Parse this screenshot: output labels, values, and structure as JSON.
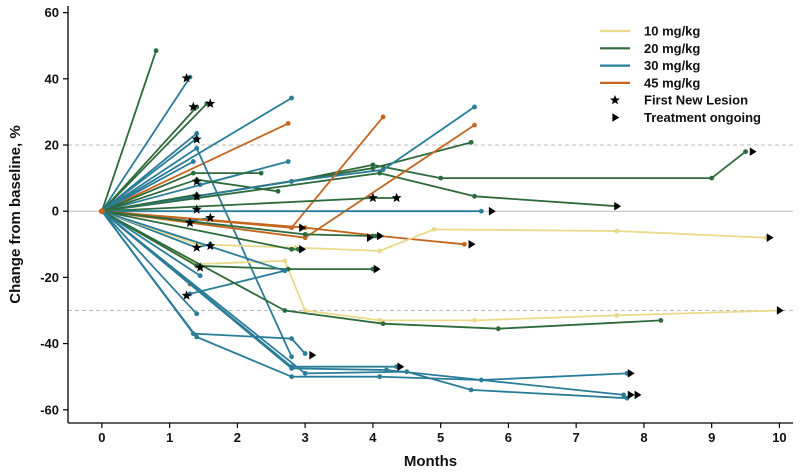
{
  "chart_data": {
    "type": "line",
    "title": "",
    "xlabel": "Months",
    "ylabel": "Change from baseline, %",
    "xlim": [
      -0.5,
      10.2
    ],
    "ylim": [
      -64,
      62
    ],
    "xticks": [
      0,
      1,
      2,
      3,
      4,
      5,
      6,
      7,
      8,
      9,
      10
    ],
    "yticks": [
      -60,
      -40,
      -20,
      0,
      20,
      40,
      60
    ],
    "reference_lines": [
      {
        "y": 20,
        "style": "dashed",
        "color": "#bbbbbb"
      },
      {
        "y": 0,
        "style": "solid",
        "color": "#bbbbbb"
      },
      {
        "y": -30,
        "style": "dashed",
        "color": "#bbbbbb"
      }
    ],
    "legend": {
      "position": "top-right",
      "entries": [
        {
          "label": "10 mg/kg",
          "kind": "line",
          "color": "#EBDA8C"
        },
        {
          "label": "20 mg/kg",
          "kind": "line",
          "color": "#2E6B3C"
        },
        {
          "label": "30 mg/kg",
          "kind": "line",
          "color": "#2A7D98"
        },
        {
          "label": "45 mg/kg",
          "kind": "line",
          "color": "#C4661F"
        },
        {
          "label": "First New Lesion",
          "kind": "star",
          "color": "#000000"
        },
        {
          "label": "Treatment ongoing",
          "kind": "triangle",
          "color": "#000000"
        }
      ]
    },
    "colors": {
      "10 mg/kg": "#EBDA8C",
      "20 mg/kg": "#2E6B3C",
      "30 mg/kg": "#2A7D98",
      "45 mg/kg": "#C4661F"
    },
    "series": [
      {
        "dose": "20 mg/kg",
        "points": [
          [
            0,
            0
          ],
          [
            0.8,
            48.5
          ]
        ]
      },
      {
        "dose": "30 mg/kg",
        "points": [
          [
            0,
            0
          ],
          [
            1.3,
            40.5
          ]
        ]
      },
      {
        "dose": "20 mg/kg",
        "points": [
          [
            0,
            0
          ],
          [
            1.4,
            31.5
          ]
        ]
      },
      {
        "dose": "20 mg/kg",
        "points": [
          [
            0,
            0
          ],
          [
            1.55,
            32.5
          ]
        ]
      },
      {
        "dose": "30 mg/kg",
        "points": [
          [
            0,
            0
          ],
          [
            2.8,
            34.2
          ]
        ]
      },
      {
        "dose": "45 mg/kg",
        "points": [
          [
            0,
            0
          ],
          [
            2.75,
            26.5
          ]
        ]
      },
      {
        "dose": "30 mg/kg",
        "points": [
          [
            0,
            0
          ],
          [
            1.4,
            23.5
          ]
        ]
      },
      {
        "dose": "30 mg/kg",
        "points": [
          [
            0,
            0
          ],
          [
            1.4,
            22
          ]
        ]
      },
      {
        "dose": "30 mg/kg",
        "points": [
          [
            0,
            0
          ],
          [
            1.4,
            19
          ],
          [
            2.8,
            -44
          ]
        ]
      },
      {
        "dose": "30 mg/kg",
        "points": [
          [
            0,
            0
          ],
          [
            1.35,
            15
          ]
        ]
      },
      {
        "dose": "30 mg/kg",
        "points": [
          [
            0,
            0
          ],
          [
            2.75,
            15
          ],
          [
            1.45,
            8
          ]
        ]
      },
      {
        "dose": "20 mg/kg",
        "points": [
          [
            0,
            0
          ],
          [
            1.35,
            11.5
          ],
          [
            2.35,
            11.5
          ]
        ]
      },
      {
        "dose": "20 mg/kg",
        "points": [
          [
            0,
            0
          ],
          [
            1.4,
            9.5
          ],
          [
            2.6,
            6
          ]
        ]
      },
      {
        "dose": "20 mg/kg",
        "points": [
          [
            0,
            0
          ],
          [
            2.8,
            9
          ],
          [
            4.0,
            14
          ],
          [
            5.0,
            10
          ],
          [
            9.0,
            10
          ],
          [
            9.5,
            18
          ]
        ]
      },
      {
        "dose": "20 mg/kg",
        "points": [
          [
            0,
            0
          ],
          [
            4.1,
            11.5
          ],
          [
            5.5,
            4.5
          ],
          [
            7.6,
            1.5
          ]
        ]
      },
      {
        "dose": "20 mg/kg",
        "points": [
          [
            0,
            0
          ],
          [
            4.0,
            13
          ],
          [
            5.45,
            20.8
          ]
        ]
      },
      {
        "dose": "30 mg/kg",
        "points": [
          [
            0,
            0
          ],
          [
            2.8,
            9
          ],
          [
            4.15,
            12.5
          ],
          [
            5.5,
            31.5
          ]
        ]
      },
      {
        "dose": "45 mg/kg",
        "points": [
          [
            0,
            0
          ],
          [
            2.8,
            -5
          ],
          [
            4.15,
            28.5
          ]
        ]
      },
      {
        "dose": "45 mg/kg",
        "points": [
          [
            0,
            0
          ],
          [
            3.0,
            -8
          ],
          [
            5.5,
            26
          ]
        ]
      },
      {
        "dose": "20 mg/kg",
        "points": [
          [
            0,
            0
          ],
          [
            1.4,
            5
          ],
          [
            1.4,
            4
          ]
        ]
      },
      {
        "dose": "20 mg/kg",
        "points": [
          [
            0,
            0
          ],
          [
            4.0,
            4
          ],
          [
            4.35,
            4
          ]
        ]
      },
      {
        "dose": "30 mg/kg",
        "points": [
          [
            0,
            0
          ],
          [
            5.6,
            0
          ]
        ]
      },
      {
        "dose": "30 mg/kg",
        "points": [
          [
            0,
            0
          ],
          [
            1.3,
            -3
          ],
          [
            1.6,
            -2
          ]
        ]
      },
      {
        "dose": "45 mg/kg",
        "points": [
          [
            0,
            0
          ],
          [
            3.0,
            -5
          ],
          [
            4.1,
            -7.5
          ],
          [
            5.35,
            -10
          ]
        ]
      },
      {
        "dose": "20 mg/kg",
        "points": [
          [
            0,
            0
          ],
          [
            3.0,
            -7
          ],
          [
            4.0,
            -7.5
          ],
          [
            4.05,
            -7.5
          ]
        ]
      },
      {
        "dose": "30 mg/kg",
        "points": [
          [
            0,
            0
          ],
          [
            1.4,
            -11
          ],
          [
            1.6,
            -10
          ]
        ]
      },
      {
        "dose": "10 mg/kg",
        "points": [
          [
            0,
            0
          ],
          [
            1.4,
            -10
          ],
          [
            2.85,
            -11
          ],
          [
            4.1,
            -12
          ],
          [
            4.9,
            -5.5
          ],
          [
            7.6,
            -6
          ],
          [
            9.8,
            -8
          ]
        ]
      },
      {
        "dose": "20 mg/kg",
        "points": [
          [
            0,
            0
          ],
          [
            2.8,
            -11.5
          ],
          [
            2.9,
            -11.5
          ]
        ]
      },
      {
        "dose": "10 mg/kg",
        "points": [
          [
            0,
            0
          ],
          [
            1.4,
            -16
          ],
          [
            2.7,
            -15
          ],
          [
            3.0,
            -30
          ],
          [
            4.1,
            -33
          ],
          [
            5.5,
            -33
          ],
          [
            7.6,
            -31.5
          ],
          [
            10.0,
            -30
          ]
        ]
      },
      {
        "dose": "20 mg/kg",
        "points": [
          [
            0,
            0
          ],
          [
            1.4,
            -16.5
          ],
          [
            2.75,
            -17.5
          ],
          [
            4.0,
            -17.5
          ],
          [
            4.05,
            -17.5
          ]
        ]
      },
      {
        "dose": "30 mg/kg",
        "points": [
          [
            0,
            0
          ],
          [
            1.45,
            -19.5
          ]
        ]
      },
      {
        "dose": "30 mg/kg",
        "points": [
          [
            0,
            0
          ],
          [
            2.7,
            -18
          ],
          [
            1.3,
            -25
          ]
        ]
      },
      {
        "dose": "45 mg/kg",
        "points": [
          [
            0,
            0
          ],
          [
            1.3,
            -22
          ]
        ]
      },
      {
        "dose": "30 mg/kg",
        "points": [
          [
            0,
            0
          ],
          [
            1.4,
            -31
          ]
        ]
      },
      {
        "dose": "20 mg/kg",
        "points": [
          [
            0,
            0
          ],
          [
            2.7,
            -30
          ],
          [
            4.15,
            -34
          ],
          [
            5.85,
            -35.5
          ],
          [
            8.25,
            -33
          ]
        ]
      },
      {
        "dose": "30 mg/kg",
        "points": [
          [
            0,
            0
          ],
          [
            1.35,
            -37
          ],
          [
            2.8,
            -38.5
          ],
          [
            3.0,
            -43
          ]
        ]
      },
      {
        "dose": "30 mg/kg",
        "points": [
          [
            0,
            0
          ],
          [
            1.4,
            -38
          ],
          [
            2.8,
            -50
          ],
          [
            4.1,
            -50
          ],
          [
            5.6,
            -51
          ],
          [
            7.75,
            -49
          ]
        ]
      },
      {
        "dose": "30 mg/kg",
        "points": [
          [
            0,
            0
          ],
          [
            2.8,
            -47
          ],
          [
            4.35,
            -47
          ]
        ]
      },
      {
        "dose": "30 mg/kg",
        "points": [
          [
            0,
            0
          ],
          [
            3.0,
            -49
          ],
          [
            4.5,
            -48.5
          ],
          [
            5.45,
            -54
          ],
          [
            7.75,
            -56.5
          ]
        ]
      },
      {
        "dose": "30 mg/kg",
        "points": [
          [
            0,
            0
          ],
          [
            2.8,
            -47.5
          ],
          [
            4.2,
            -48
          ],
          [
            7.7,
            -55.5
          ]
        ]
      }
    ],
    "first_new_lesion": [
      [
        1.25,
        40.2
      ],
      [
        1.35,
        31.5
      ],
      [
        1.6,
        32.5
      ],
      [
        1.4,
        21.7
      ],
      [
        1.4,
        9
      ],
      [
        1.4,
        4.5
      ],
      [
        1.4,
        0.5
      ],
      [
        1.3,
        -3.5
      ],
      [
        1.6,
        -2
      ],
      [
        1.4,
        -11
      ],
      [
        1.6,
        -10.5
      ],
      [
        1.45,
        -17
      ],
      [
        1.25,
        -25.5
      ],
      [
        4.0,
        4
      ],
      [
        4.35,
        4
      ]
    ],
    "treatment_ongoing": [
      [
        9.6,
        18
      ],
      [
        7.6,
        1.5
      ],
      [
        5.75,
        0
      ],
      [
        4.1,
        -7.5
      ],
      [
        5.45,
        -10
      ],
      [
        2.95,
        -5
      ],
      [
        2.95,
        -11.5
      ],
      [
        4.05,
        -17.5
      ],
      [
        9.85,
        -8
      ],
      [
        10.0,
        -30
      ],
      [
        3.1,
        -43.5
      ],
      [
        4.4,
        -47
      ],
      [
        7.8,
        -49
      ],
      [
        7.8,
        -55.5
      ],
      [
        7.9,
        -55.5
      ],
      [
        3.95,
        -8
      ]
    ]
  }
}
